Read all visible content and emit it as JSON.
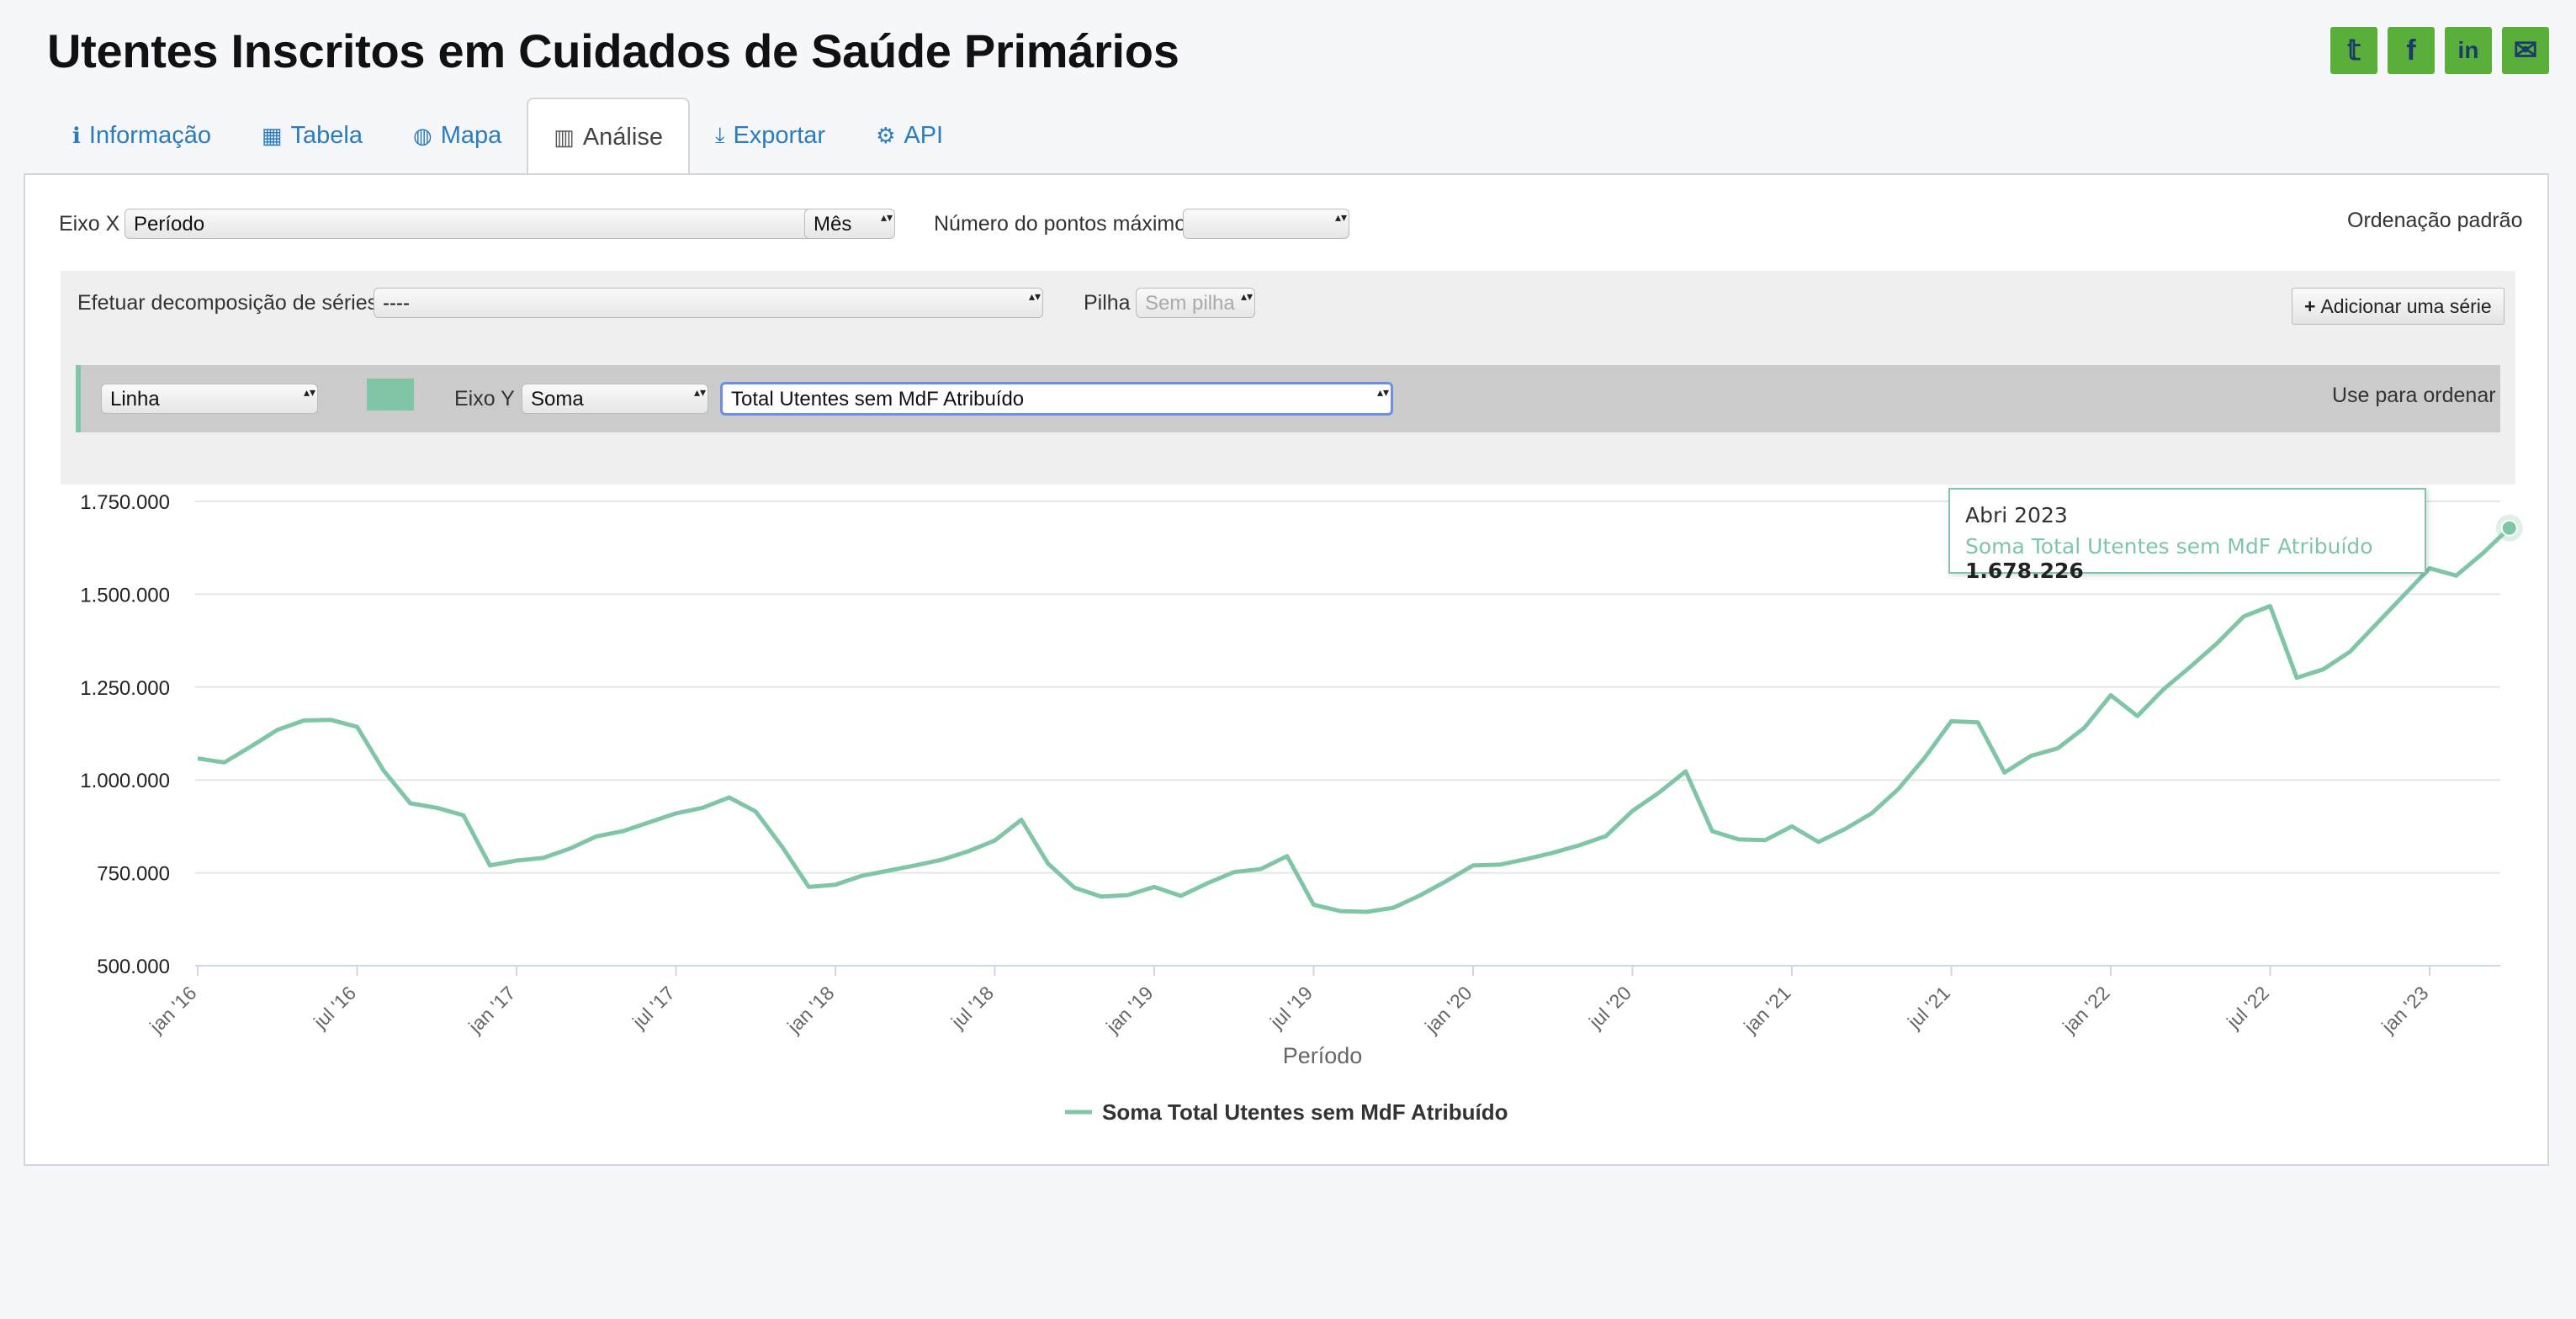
{
  "page": {
    "title": "Utentes Inscritos em Cuidados de Saúde Primários"
  },
  "share": [
    {
      "name": "twitter-icon",
      "glyph": "𝕥"
    },
    {
      "name": "facebook-icon",
      "glyph": "f"
    },
    {
      "name": "linkedin-icon",
      "glyph": "in"
    },
    {
      "name": "email-icon",
      "glyph": "✉"
    }
  ],
  "tabs": [
    {
      "label": "Informação",
      "icon": "ℹ"
    },
    {
      "label": "Tabela",
      "icon": "▦"
    },
    {
      "label": "Mapa",
      "icon": "◍"
    },
    {
      "label": "Análise",
      "icon": "▥"
    },
    {
      "label": "Exportar",
      "icon": "⤓"
    },
    {
      "label": "API",
      "icon": "⚙"
    }
  ],
  "controls": {
    "x_axis_label": "Eixo X",
    "x_axis_value": "Período",
    "x_period_value": "Mês",
    "max_points_label": "Número do pontos máximo",
    "max_points_value": "",
    "ordering_label": "Ordenação padrão",
    "decomp_label": "Efetuar decomposição de séries",
    "decomp_value": "----",
    "stack_label": "Pilha",
    "stack_value": "Sem pilha",
    "add_series_label": "Adicionar uma série",
    "add_series_icon": "+",
    "series_type_value": "Linha",
    "series_color": "#7fc5a6",
    "y_axis_label": "Eixo Y",
    "y_agg_value": "Soma",
    "y_field_value": "Total Utentes sem MdF Atribuído",
    "use_for_order_label": "Use para ordenar"
  },
  "chart_data": {
    "type": "line",
    "xlabel": "Período",
    "ylim": [
      500000,
      1750000
    ],
    "yticks": [
      "500.000",
      "750.000",
      "1.000.000",
      "1.250.000",
      "1.500.000",
      "1.750.000"
    ],
    "ytick_values": [
      500000,
      750000,
      1000000,
      1250000,
      1500000,
      1750000
    ],
    "xticks": [
      "jan '16",
      "jul '16",
      "jan '17",
      "jul '17",
      "jan '18",
      "jul '18",
      "jan '19",
      "jul '19",
      "jan '20",
      "jul '20",
      "jan '21",
      "jul '21",
      "jan '22",
      "jul '22",
      "jan '23"
    ],
    "x_start": "jan 2016",
    "grid": true,
    "legend_position": "bottom-center",
    "series": [
      {
        "name": "Soma Total Utentes sem MdF Atribuído",
        "color": "#7fc5a6",
        "values": [
          1058000,
          1047000,
          1090000,
          1135000,
          1160000,
          1162000,
          1143000,
          1025000,
          937000,
          925000,
          905000,
          770000,
          783000,
          790000,
          815000,
          848000,
          862000,
          886000,
          910000,
          925000,
          953000,
          915000,
          820000,
          712000,
          718000,
          742000,
          756000,
          770000,
          785000,
          808000,
          837000,
          893000,
          775000,
          710000,
          686000,
          690000,
          712000,
          688000,
          722000,
          752000,
          760000,
          795000,
          664000,
          647000,
          645000,
          656000,
          689000,
          728000,
          770000,
          772000,
          787000,
          804000,
          824000,
          849000,
          917000,
          966000,
          1023000,
          862000,
          840000,
          838000,
          875000,
          833000,
          868000,
          910000,
          975000,
          1060000,
          1158000,
          1155000,
          1020000,
          1065000,
          1085000,
          1140000,
          1228000,
          1172000,
          1245000,
          1305000,
          1368000,
          1440000,
          1468000,
          1275000,
          1298000,
          1345000,
          1420000,
          1495000,
          1570000,
          1550000,
          1610000,
          1678226
        ]
      }
    ],
    "tooltip": {
      "period": "Abri 2023",
      "series_label": "Soma Total Utentes sem MdF Atribuído",
      "value": "1.678.226"
    }
  }
}
